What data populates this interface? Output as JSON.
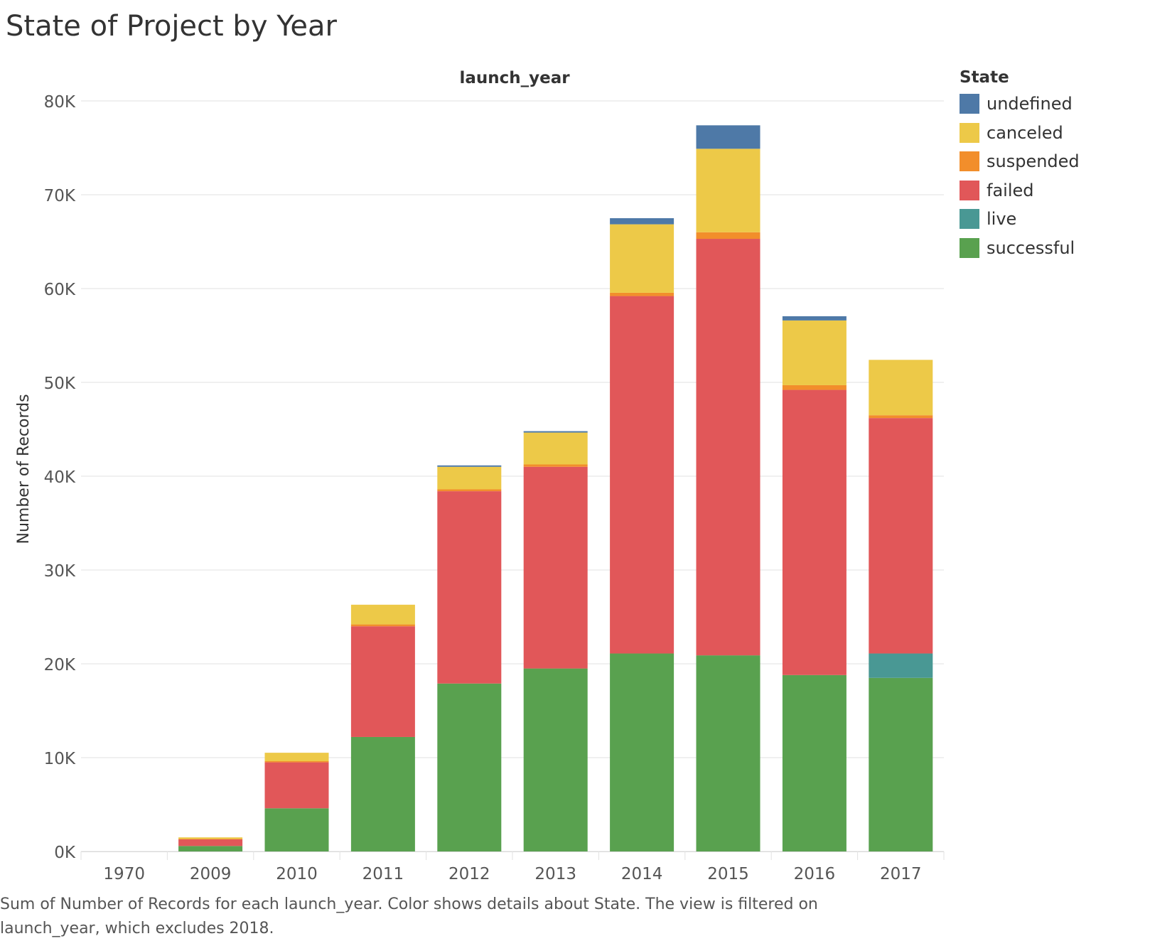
{
  "title": "State of Project by Year",
  "caption": "Sum of Number of Records for each launch_year.  Color shows details about State. The view is filtered on launch_year, which excludes 2018.",
  "chart_data": {
    "type": "bar",
    "stacked": true,
    "title": "State of Project by Year",
    "column_header": "launch_year",
    "xlabel": "",
    "ylabel": "Number of Records",
    "ylim": [
      0,
      80000
    ],
    "yticks": [
      0,
      10000,
      20000,
      30000,
      40000,
      50000,
      60000,
      70000,
      80000
    ],
    "ytick_labels": [
      "0K",
      "10K",
      "20K",
      "30K",
      "40K",
      "50K",
      "60K",
      "70K",
      "80K"
    ],
    "grid": true,
    "legend_position": "right",
    "legend_title": "State",
    "categories": [
      "1970",
      "2009",
      "2010",
      "2011",
      "2012",
      "2013",
      "2014",
      "2015",
      "2016",
      "2017"
    ],
    "series": [
      {
        "name": "successful",
        "color": "#59a14f",
        "values": [
          0,
          580,
          4600,
          12200,
          17900,
          19500,
          21100,
          20900,
          18800,
          18500
        ]
      },
      {
        "name": "live",
        "color": "#499894",
        "values": [
          0,
          0,
          0,
          0,
          0,
          0,
          0,
          0,
          0,
          2600
        ]
      },
      {
        "name": "failed",
        "color": "#e15759",
        "values": [
          0,
          730,
          4900,
          11800,
          20500,
          21500,
          38100,
          44400,
          30400,
          25100
        ]
      },
      {
        "name": "suspended",
        "color": "#f28e2b",
        "values": [
          0,
          10,
          120,
          200,
          200,
          250,
          350,
          700,
          500,
          300
        ]
      },
      {
        "name": "canceled",
        "color": "#edc948",
        "values": [
          0,
          180,
          900,
          2100,
          2400,
          3400,
          7300,
          8900,
          6900,
          5900
        ]
      },
      {
        "name": "undefined",
        "color": "#4e79a7",
        "values": [
          0,
          0,
          0,
          0,
          150,
          150,
          650,
          2500,
          450,
          0
        ]
      }
    ],
    "legend_order": [
      "undefined",
      "canceled",
      "suspended",
      "failed",
      "live",
      "successful"
    ]
  }
}
